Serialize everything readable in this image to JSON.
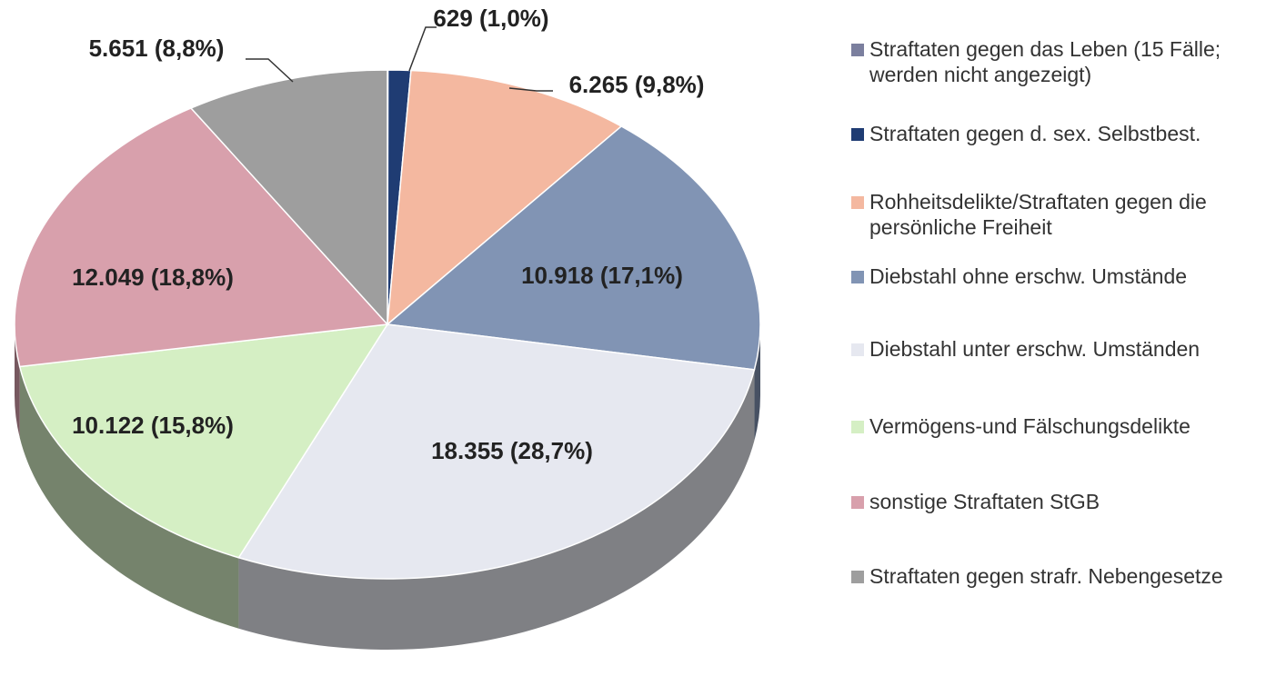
{
  "chart_data": {
    "type": "pie",
    "categories": [
      "Straftaten gegen das Leben (15 Fälle; werden nicht angezeigt)",
      "Straftaten gegen d. sex. Selbstbest.",
      "Rohheitsdelikte/Straftaten gegen die persönliche Freiheit",
      "Diebstahl ohne erschw. Umstände",
      "Diebstahl unter erschw. Umständen",
      "Vermögens-und Fälschungsdelikte",
      "sonstige Straftaten StGB",
      "Straftaten gegen strafr. Nebengesetze"
    ],
    "values": [
      15,
      629,
      6265,
      10918,
      18355,
      10122,
      12049,
      5651
    ],
    "value_labels": [
      null,
      "629 (1,0%)",
      "6.265 (9,8%)",
      "10.918 (17,1%)",
      "18.355 (28,7%)",
      "10.122 (15,8%)",
      "12.049 (18,8%)",
      "5.651 (8,8%)"
    ],
    "colors": [
      "#7b7f9e",
      "#1f3c73",
      "#f4b8a0",
      "#8194b4",
      "#e6e8f0",
      "#d5efc4",
      "#d8a0ac",
      "#9e9e9e"
    ],
    "legend": "right"
  }
}
